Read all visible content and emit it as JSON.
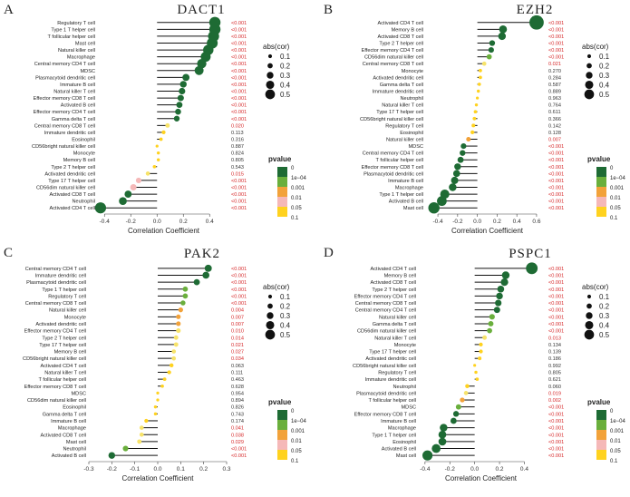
{
  "chart_data": [
    {
      "type": "lollipop",
      "panel_letter": "A",
      "title": "DACT1",
      "xlabel": "Correlation Coefficient",
      "xlim": [
        -0.45,
        0.55
      ],
      "xticks": [
        "-0.4",
        "-0.2",
        "0.0",
        "0.2",
        "0.4"
      ],
      "xtick_values": [
        -0.4,
        -0.2,
        0.0,
        0.2,
        0.4
      ],
      "rows": [
        {
          "cell": "Regulatory T cell",
          "cor": 0.44,
          "p": "<0.001",
          "cat": 0
        },
        {
          "cell": "Type 1 T helper cell",
          "cor": 0.44,
          "p": "<0.001",
          "cat": 0
        },
        {
          "cell": "T follicular helper cell",
          "cor": 0.43,
          "p": "<0.001",
          "cat": 0
        },
        {
          "cell": "Mast cell",
          "cor": 0.42,
          "p": "<0.001",
          "cat": 0
        },
        {
          "cell": "Natural killer cell",
          "cor": 0.39,
          "p": "<0.001",
          "cat": 0
        },
        {
          "cell": "Macrophage",
          "cor": 0.37,
          "p": "<0.001",
          "cat": 0
        },
        {
          "cell": "Central memory CD4 T cell",
          "cor": 0.34,
          "p": "<0.001",
          "cat": 0
        },
        {
          "cell": "MDSC",
          "cor": 0.32,
          "p": "<0.001",
          "cat": 0
        },
        {
          "cell": "Plasmacytoid dendritic cell",
          "cor": 0.22,
          "p": "<0.001",
          "cat": 0
        },
        {
          "cell": "Immature  B cell",
          "cor": 0.2,
          "p": "<0.001",
          "cat": 0
        },
        {
          "cell": "Natural killer T cell",
          "cor": 0.19,
          "p": "<0.001",
          "cat": 0
        },
        {
          "cell": "Effector memory CD8 T cell",
          "cor": 0.18,
          "p": "<0.001",
          "cat": 0
        },
        {
          "cell": "Activated B cell",
          "cor": 0.17,
          "p": "<0.001",
          "cat": 0
        },
        {
          "cell": "Effector memory CD4 T cell",
          "cor": 0.16,
          "p": "<0.001",
          "cat": 0
        },
        {
          "cell": "Gamma delta T cell",
          "cor": 0.15,
          "p": "<0.001",
          "cat": 0
        },
        {
          "cell": "Central memory CD8 T cell",
          "cor": 0.08,
          "p": "0.020",
          "cat": 4
        },
        {
          "cell": "Immature dendritic cell",
          "cor": 0.05,
          "p": "0.113",
          "cat": 5
        },
        {
          "cell": "Eosinophil",
          "cor": 0.03,
          "p": "0.316",
          "cat": 5
        },
        {
          "cell": "CD56bright natural killer cell",
          "cor": 0.0,
          "p": "0.887",
          "cat": 5
        },
        {
          "cell": "Monocyte",
          "cor": 0.01,
          "p": "0.824",
          "cat": 5
        },
        {
          "cell": "Memory B cell",
          "cor": 0.01,
          "p": "0.805",
          "cat": 5
        },
        {
          "cell": "Type 2 T helper cell",
          "cor": -0.02,
          "p": "0.543",
          "cat": 5
        },
        {
          "cell": "Activated dendritic cell",
          "cor": -0.07,
          "p": "0.015",
          "cat": 4
        },
        {
          "cell": "Type 17 T helper cell",
          "cor": -0.14,
          "p": "<0.001",
          "cat": 3
        },
        {
          "cell": "CD56dim natural killer cell",
          "cor": -0.18,
          "p": "<0.001",
          "cat": 3
        },
        {
          "cell": "Activated CD8 T cell",
          "cor": -0.22,
          "p": "<0.001",
          "cat": 0
        },
        {
          "cell": "Neutrophil",
          "cor": -0.26,
          "p": "<0.001",
          "cat": 0
        },
        {
          "cell": "Activated CD4 T cell",
          "cor": -0.43,
          "p": "<0.001",
          "cat": 0
        }
      ]
    },
    {
      "type": "lollipop",
      "panel_letter": "B",
      "title": "EZH2",
      "xlabel": "Correlation Coefficient",
      "xlim": [
        -0.52,
        0.72
      ],
      "xticks": [
        "-0.4",
        "-0.2",
        "0.0",
        "0.2",
        "0.4",
        "0.6"
      ],
      "xtick_values": [
        -0.4,
        -0.2,
        0.0,
        0.2,
        0.4,
        0.6
      ],
      "rows": [
        {
          "cell": "Activated CD4 T cell",
          "cor": 0.6,
          "p": "<0.001",
          "cat": 0
        },
        {
          "cell": "Memory B cell",
          "cor": 0.26,
          "p": "<0.001",
          "cat": 0
        },
        {
          "cell": "Activated CD8 T cell",
          "cor": 0.25,
          "p": "<0.001",
          "cat": 0
        },
        {
          "cell": "Type 2 T helper cell",
          "cor": 0.15,
          "p": "<0.001",
          "cat": 0
        },
        {
          "cell": "Effector memory CD4 T cell",
          "cor": 0.14,
          "p": "<0.001",
          "cat": 0
        },
        {
          "cell": "CD56dim natural killer cell",
          "cor": 0.12,
          "p": "<0.001",
          "cat": 1
        },
        {
          "cell": "Central memory CD8 T cell",
          "cor": 0.07,
          "p": "0.021",
          "cat": 4
        },
        {
          "cell": "Monocyte",
          "cor": 0.03,
          "p": "0.270",
          "cat": 5
        },
        {
          "cell": "Activated dendritic cell",
          "cor": 0.03,
          "p": "0.284",
          "cat": 5
        },
        {
          "cell": "Gamma delta T cell",
          "cor": 0.02,
          "p": "0.587",
          "cat": 5
        },
        {
          "cell": "Immature dendritic cell",
          "cor": 0.01,
          "p": "0.889",
          "cat": 5
        },
        {
          "cell": "Neutrophil",
          "cor": 0.0,
          "p": "0.963",
          "cat": 5
        },
        {
          "cell": "Natural killer T cell",
          "cor": -0.01,
          "p": "0.764",
          "cat": 5
        },
        {
          "cell": "Type 17 T helper cell",
          "cor": -0.02,
          "p": "0.611",
          "cat": 5
        },
        {
          "cell": "CD56bright natural killer cell",
          "cor": -0.03,
          "p": "0.366",
          "cat": 5
        },
        {
          "cell": "Regulatory T cell",
          "cor": -0.04,
          "p": "0.142",
          "cat": 5
        },
        {
          "cell": "Eosinophil",
          "cor": -0.05,
          "p": "0.128",
          "cat": 5
        },
        {
          "cell": "Natural killer cell",
          "cor": -0.09,
          "p": "0.007",
          "cat": 2
        },
        {
          "cell": "MDSC",
          "cor": -0.14,
          "p": "<0.001",
          "cat": 0
        },
        {
          "cell": "Central memory CD4 T cell",
          "cor": -0.15,
          "p": "<0.001",
          "cat": 0
        },
        {
          "cell": "T follicular helper cell",
          "cor": -0.17,
          "p": "<0.001",
          "cat": 0
        },
        {
          "cell": "Effector memory CD8 T cell",
          "cor": -0.2,
          "p": "<0.001",
          "cat": 0
        },
        {
          "cell": "Plasmacytoid dendritic cell",
          "cor": -0.21,
          "p": "<0.001",
          "cat": 0
        },
        {
          "cell": "Immature  B cell",
          "cor": -0.23,
          "p": "<0.001",
          "cat": 0
        },
        {
          "cell": "Macrophage",
          "cor": -0.25,
          "p": "<0.001",
          "cat": 0
        },
        {
          "cell": "Type 1 T helper cell",
          "cor": -0.33,
          "p": "<0.001",
          "cat": 0
        },
        {
          "cell": "Activated B cell",
          "cor": -0.36,
          "p": "<0.001",
          "cat": 0
        },
        {
          "cell": "Mast cell",
          "cor": -0.44,
          "p": "<0.001",
          "cat": 0
        }
      ]
    },
    {
      "type": "lollipop",
      "panel_letter": "C",
      "title": "PAK2",
      "xlabel": "Correlation Coefficient",
      "xlim": [
        -0.3,
        0.3
      ],
      "xticks": [
        "-0.3",
        "-0.2",
        "-0.1",
        "0.0",
        "0.1",
        "0.2",
        "0.3"
      ],
      "xtick_values": [
        -0.3,
        -0.2,
        -0.1,
        0.0,
        0.1,
        0.2,
        0.3
      ],
      "rows": [
        {
          "cell": "Central memory CD4 T cell",
          "cor": 0.22,
          "p": "<0.001",
          "cat": 0
        },
        {
          "cell": "Immature dendritic cell",
          "cor": 0.21,
          "p": "<0.001",
          "cat": 0
        },
        {
          "cell": "Plasmacytoid dendritic cell",
          "cor": 0.17,
          "p": "<0.001",
          "cat": 0
        },
        {
          "cell": "Type 1 T helper cell",
          "cor": 0.12,
          "p": "<0.001",
          "cat": 1
        },
        {
          "cell": "Regulatory T cell",
          "cor": 0.12,
          "p": "<0.001",
          "cat": 1
        },
        {
          "cell": "Central memory CD8 T cell",
          "cor": 0.11,
          "p": "<0.001",
          "cat": 1
        },
        {
          "cell": "Natural killer cell",
          "cor": 0.1,
          "p": "0.004",
          "cat": 2
        },
        {
          "cell": "Monocyte",
          "cor": 0.09,
          "p": "0.007",
          "cat": 2
        },
        {
          "cell": "Activated dendritic cell",
          "cor": 0.09,
          "p": "0.007",
          "cat": 2
        },
        {
          "cell": "Effector memory CD4 T cell",
          "cor": 0.09,
          "p": "0.010",
          "cat": 4
        },
        {
          "cell": "Type 2 T helper cell",
          "cor": 0.08,
          "p": "0.014",
          "cat": 4
        },
        {
          "cell": "Type 17 T helper cell",
          "cor": 0.08,
          "p": "0.021",
          "cat": 4
        },
        {
          "cell": "Memory B cell",
          "cor": 0.07,
          "p": "0.027",
          "cat": 4
        },
        {
          "cell": "CD56bright natural killer cell",
          "cor": 0.07,
          "p": "0.034",
          "cat": 4
        },
        {
          "cell": "Activated CD4 T cell",
          "cor": 0.06,
          "p": "0.063",
          "cat": 5
        },
        {
          "cell": "Natural killer T cell",
          "cor": 0.05,
          "p": "0.111",
          "cat": 5
        },
        {
          "cell": "T follicular helper cell",
          "cor": 0.03,
          "p": "0.463",
          "cat": 5
        },
        {
          "cell": "Effector memory CD8 T cell",
          "cor": 0.02,
          "p": "0.628",
          "cat": 5
        },
        {
          "cell": "MDSC",
          "cor": 0.0,
          "p": "0.954",
          "cat": 5
        },
        {
          "cell": "CD56dim natural killer cell",
          "cor": -0.0,
          "p": "0.894",
          "cat": 5
        },
        {
          "cell": "Eosinophil",
          "cor": -0.01,
          "p": "0.826",
          "cat": 5
        },
        {
          "cell": "Gamma delta T cell",
          "cor": -0.01,
          "p": "0.743",
          "cat": 5
        },
        {
          "cell": "Immature  B cell",
          "cor": -0.05,
          "p": "0.174",
          "cat": 5
        },
        {
          "cell": "Macrophage",
          "cor": -0.07,
          "p": "0.041",
          "cat": 4
        },
        {
          "cell": "Activated CD8 T cell",
          "cor": -0.07,
          "p": "0.038",
          "cat": 4
        },
        {
          "cell": "Mast cell",
          "cor": -0.08,
          "p": "0.029",
          "cat": 4
        },
        {
          "cell": "Neutrophil",
          "cor": -0.14,
          "p": "<0.001",
          "cat": 1
        },
        {
          "cell": "Activated B cell",
          "cor": -0.2,
          "p": "<0.001",
          "cat": 0
        }
      ]
    },
    {
      "type": "lollipop",
      "panel_letter": "D",
      "title": "PSPC1",
      "xlabel": "Correlation Coefficient",
      "xlim": [
        -0.45,
        0.55
      ],
      "xticks": [
        "-0.4",
        "-0.2",
        "0.0",
        "0.2",
        "0.4"
      ],
      "xtick_values": [
        -0.4,
        -0.2,
        0.0,
        0.2,
        0.4
      ],
      "rows": [
        {
          "cell": "Activated CD4 T cell",
          "cor": 0.46,
          "p": "<0.001",
          "cat": 0
        },
        {
          "cell": "Memory B cell",
          "cor": 0.25,
          "p": "<0.001",
          "cat": 0
        },
        {
          "cell": "Activated CD8 T cell",
          "cor": 0.24,
          "p": "<0.001",
          "cat": 0
        },
        {
          "cell": "Type 2 T helper cell",
          "cor": 0.21,
          "p": "<0.001",
          "cat": 0
        },
        {
          "cell": "Effector memory CD4 T cell",
          "cor": 0.2,
          "p": "<0.001",
          "cat": 0
        },
        {
          "cell": "Central memory CD8 T cell",
          "cor": 0.19,
          "p": "<0.001",
          "cat": 0
        },
        {
          "cell": "Central memory CD4 T cell",
          "cor": 0.18,
          "p": "<0.001",
          "cat": 0
        },
        {
          "cell": "Natural killer cell",
          "cor": 0.14,
          "p": "<0.001",
          "cat": 1
        },
        {
          "cell": "Gamma delta T cell",
          "cor": 0.13,
          "p": "<0.001",
          "cat": 1
        },
        {
          "cell": "CD56dim natural killer cell",
          "cor": 0.12,
          "p": "<0.001",
          "cat": 1
        },
        {
          "cell": "Natural killer T cell",
          "cor": 0.08,
          "p": "0.013",
          "cat": 4
        },
        {
          "cell": "Monocyte",
          "cor": 0.05,
          "p": "0.134",
          "cat": 5
        },
        {
          "cell": "Type 17 T helper cell",
          "cor": 0.05,
          "p": "0.139",
          "cat": 5
        },
        {
          "cell": "Activated dendritic cell",
          "cor": 0.04,
          "p": "0.186",
          "cat": 5
        },
        {
          "cell": "CD56bright natural killer cell",
          "cor": 0.0,
          "p": "0.992",
          "cat": 5
        },
        {
          "cell": "Regulatory T cell",
          "cor": 0.01,
          "p": "0.805",
          "cat": 5
        },
        {
          "cell": "Immature dendritic cell",
          "cor": 0.02,
          "p": "0.621",
          "cat": 5
        },
        {
          "cell": "Neutrophil",
          "cor": -0.06,
          "p": "0.060",
          "cat": 5
        },
        {
          "cell": "Plasmacytoid dendritic cell",
          "cor": -0.07,
          "p": "0.019",
          "cat": 4
        },
        {
          "cell": "T follicular helper cell",
          "cor": -0.1,
          "p": "0.002",
          "cat": 2
        },
        {
          "cell": "MDSC",
          "cor": -0.13,
          "p": "<0.001",
          "cat": 1
        },
        {
          "cell": "Effector memory CD8 T cell",
          "cor": -0.15,
          "p": "<0.001",
          "cat": 0
        },
        {
          "cell": "Immature  B cell",
          "cor": -0.17,
          "p": "<0.001",
          "cat": 0
        },
        {
          "cell": "Macrophage",
          "cor": -0.25,
          "p": "<0.001",
          "cat": 0
        },
        {
          "cell": "Type 1 T helper cell",
          "cor": -0.26,
          "p": "<0.001",
          "cat": 0
        },
        {
          "cell": "Eosinophil",
          "cor": -0.26,
          "p": "<0.001",
          "cat": 0
        },
        {
          "cell": "Activated B cell",
          "cor": -0.31,
          "p": "<0.001",
          "cat": 0
        },
        {
          "cell": "Mast cell",
          "cor": -0.38,
          "p": "<0.001",
          "cat": 0
        }
      ]
    }
  ],
  "legend": {
    "size_title": "abs(cor)",
    "size_entries": [
      {
        "label": "0.1",
        "value": 0.1
      },
      {
        "label": "0.2",
        "value": 0.2
      },
      {
        "label": "0.3",
        "value": 0.3
      },
      {
        "label": "0.4",
        "value": 0.4
      },
      {
        "label": "0.5",
        "value": 0.5
      }
    ],
    "color_title": "pvalue",
    "color_labels": [
      "0",
      "1e−04",
      "0.001",
      "0.01",
      "0.05",
      "0.1"
    ],
    "category_colors": [
      "#1e6b34",
      "#6aaf3c",
      "#f2a23a",
      "#f5b8b8",
      "#f7e36a",
      "#ffd21f"
    ],
    "legend_colors": [
      "#1e6b34",
      "#6aaf3c",
      "#f2a23a",
      "#f5b8b8",
      "#ffd21f"
    ],
    "sig_color": "#d62728",
    "ns_color": "#333333"
  }
}
